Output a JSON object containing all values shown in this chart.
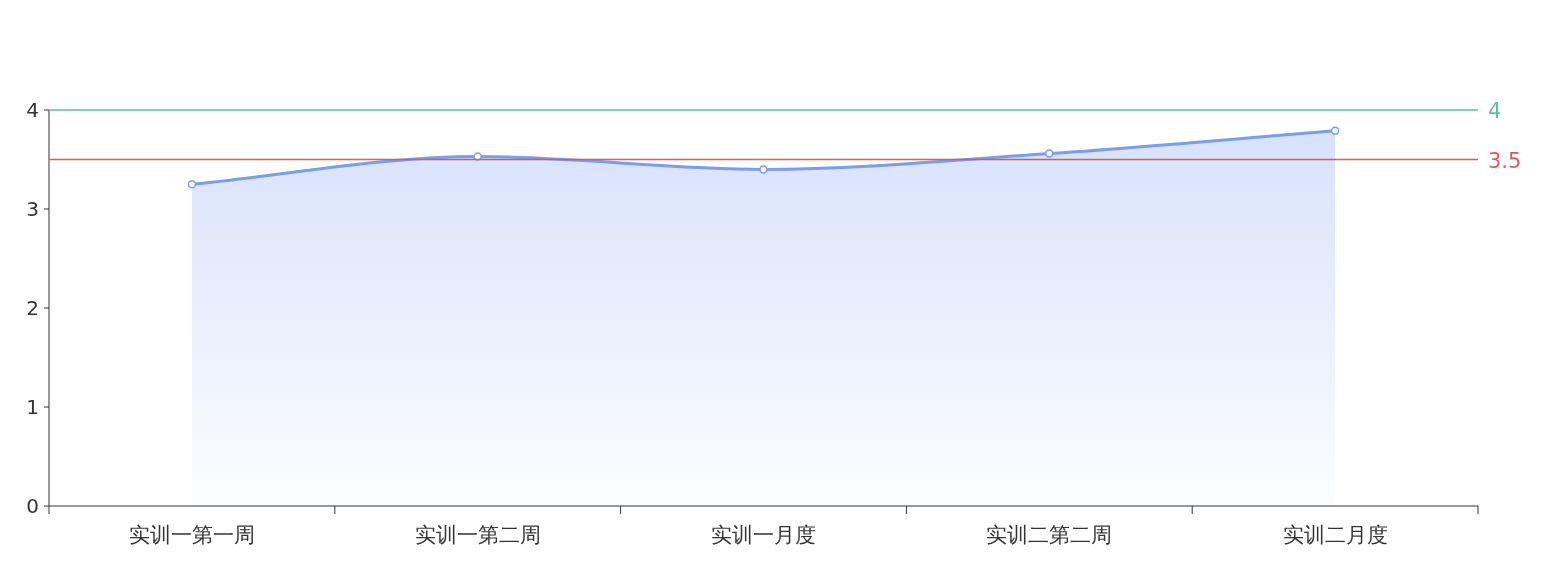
{
  "chart_data": {
    "type": "area",
    "categories": [
      "实训一第一周",
      "实训一第二周",
      "实训一月度",
      "实训二第二周",
      "实训二月度"
    ],
    "series": [
      {
        "color": "#7a9df0",
        "values": [
          3.25,
          3.53,
          3.4,
          3.56,
          3.79
        ]
      }
    ],
    "ylim": [
      0,
      4
    ],
    "yticks": [
      0,
      1,
      2,
      3,
      4
    ],
    "marker": "circle",
    "line_style": "solid",
    "grid": false,
    "ref_lines": [
      {
        "axis": "y",
        "value": 4,
        "label": "4",
        "color": "#5cc29a"
      },
      {
        "axis": "y",
        "value": 3.5,
        "label": "3.5",
        "color": "#dc5a57"
      }
    ]
  }
}
